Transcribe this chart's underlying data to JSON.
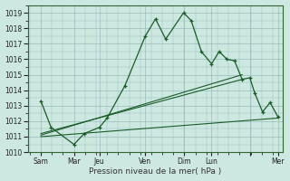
{
  "xlabel": "Pression niveau de la mer( hPa )",
  "background_color": "#cce8e0",
  "grid_color": "#99bbbb",
  "line_color": "#1a5c28",
  "ylim": [
    1010,
    1019.5
  ],
  "xlim": [
    0,
    100
  ],
  "yticks": [
    1010,
    1011,
    1012,
    1013,
    1014,
    1015,
    1016,
    1017,
    1018,
    1019
  ],
  "xtick_positions": [
    5,
    18,
    28,
    46,
    61,
    72,
    87,
    98
  ],
  "xtick_labels": [
    "Sam",
    "Mar",
    "Jeu",
    "Ven",
    "Dim",
    "Lun",
    "",
    "Mer"
  ],
  "line1_x": [
    5,
    9,
    18,
    22,
    28,
    31,
    38,
    46,
    50,
    54,
    61,
    64,
    68,
    72,
    75,
    78,
    81,
    84,
    87,
    89,
    92,
    95,
    98
  ],
  "line1_y": [
    1013.3,
    1011.6,
    1010.5,
    1011.2,
    1011.6,
    1012.2,
    1014.3,
    1017.5,
    1018.6,
    1017.3,
    1019.0,
    1018.5,
    1016.5,
    1015.7,
    1016.5,
    1016.0,
    1015.9,
    1014.7,
    1014.8,
    1013.8,
    1012.6,
    1013.2,
    1012.3
  ],
  "line2_x": [
    5,
    98
  ],
  "line2_y": [
    1011.0,
    1012.2
  ],
  "line3_x": [
    5,
    84
  ],
  "line3_y": [
    1011.1,
    1015.0
  ],
  "line4_x": [
    5,
    84
  ],
  "line4_y": [
    1011.2,
    1014.7
  ]
}
